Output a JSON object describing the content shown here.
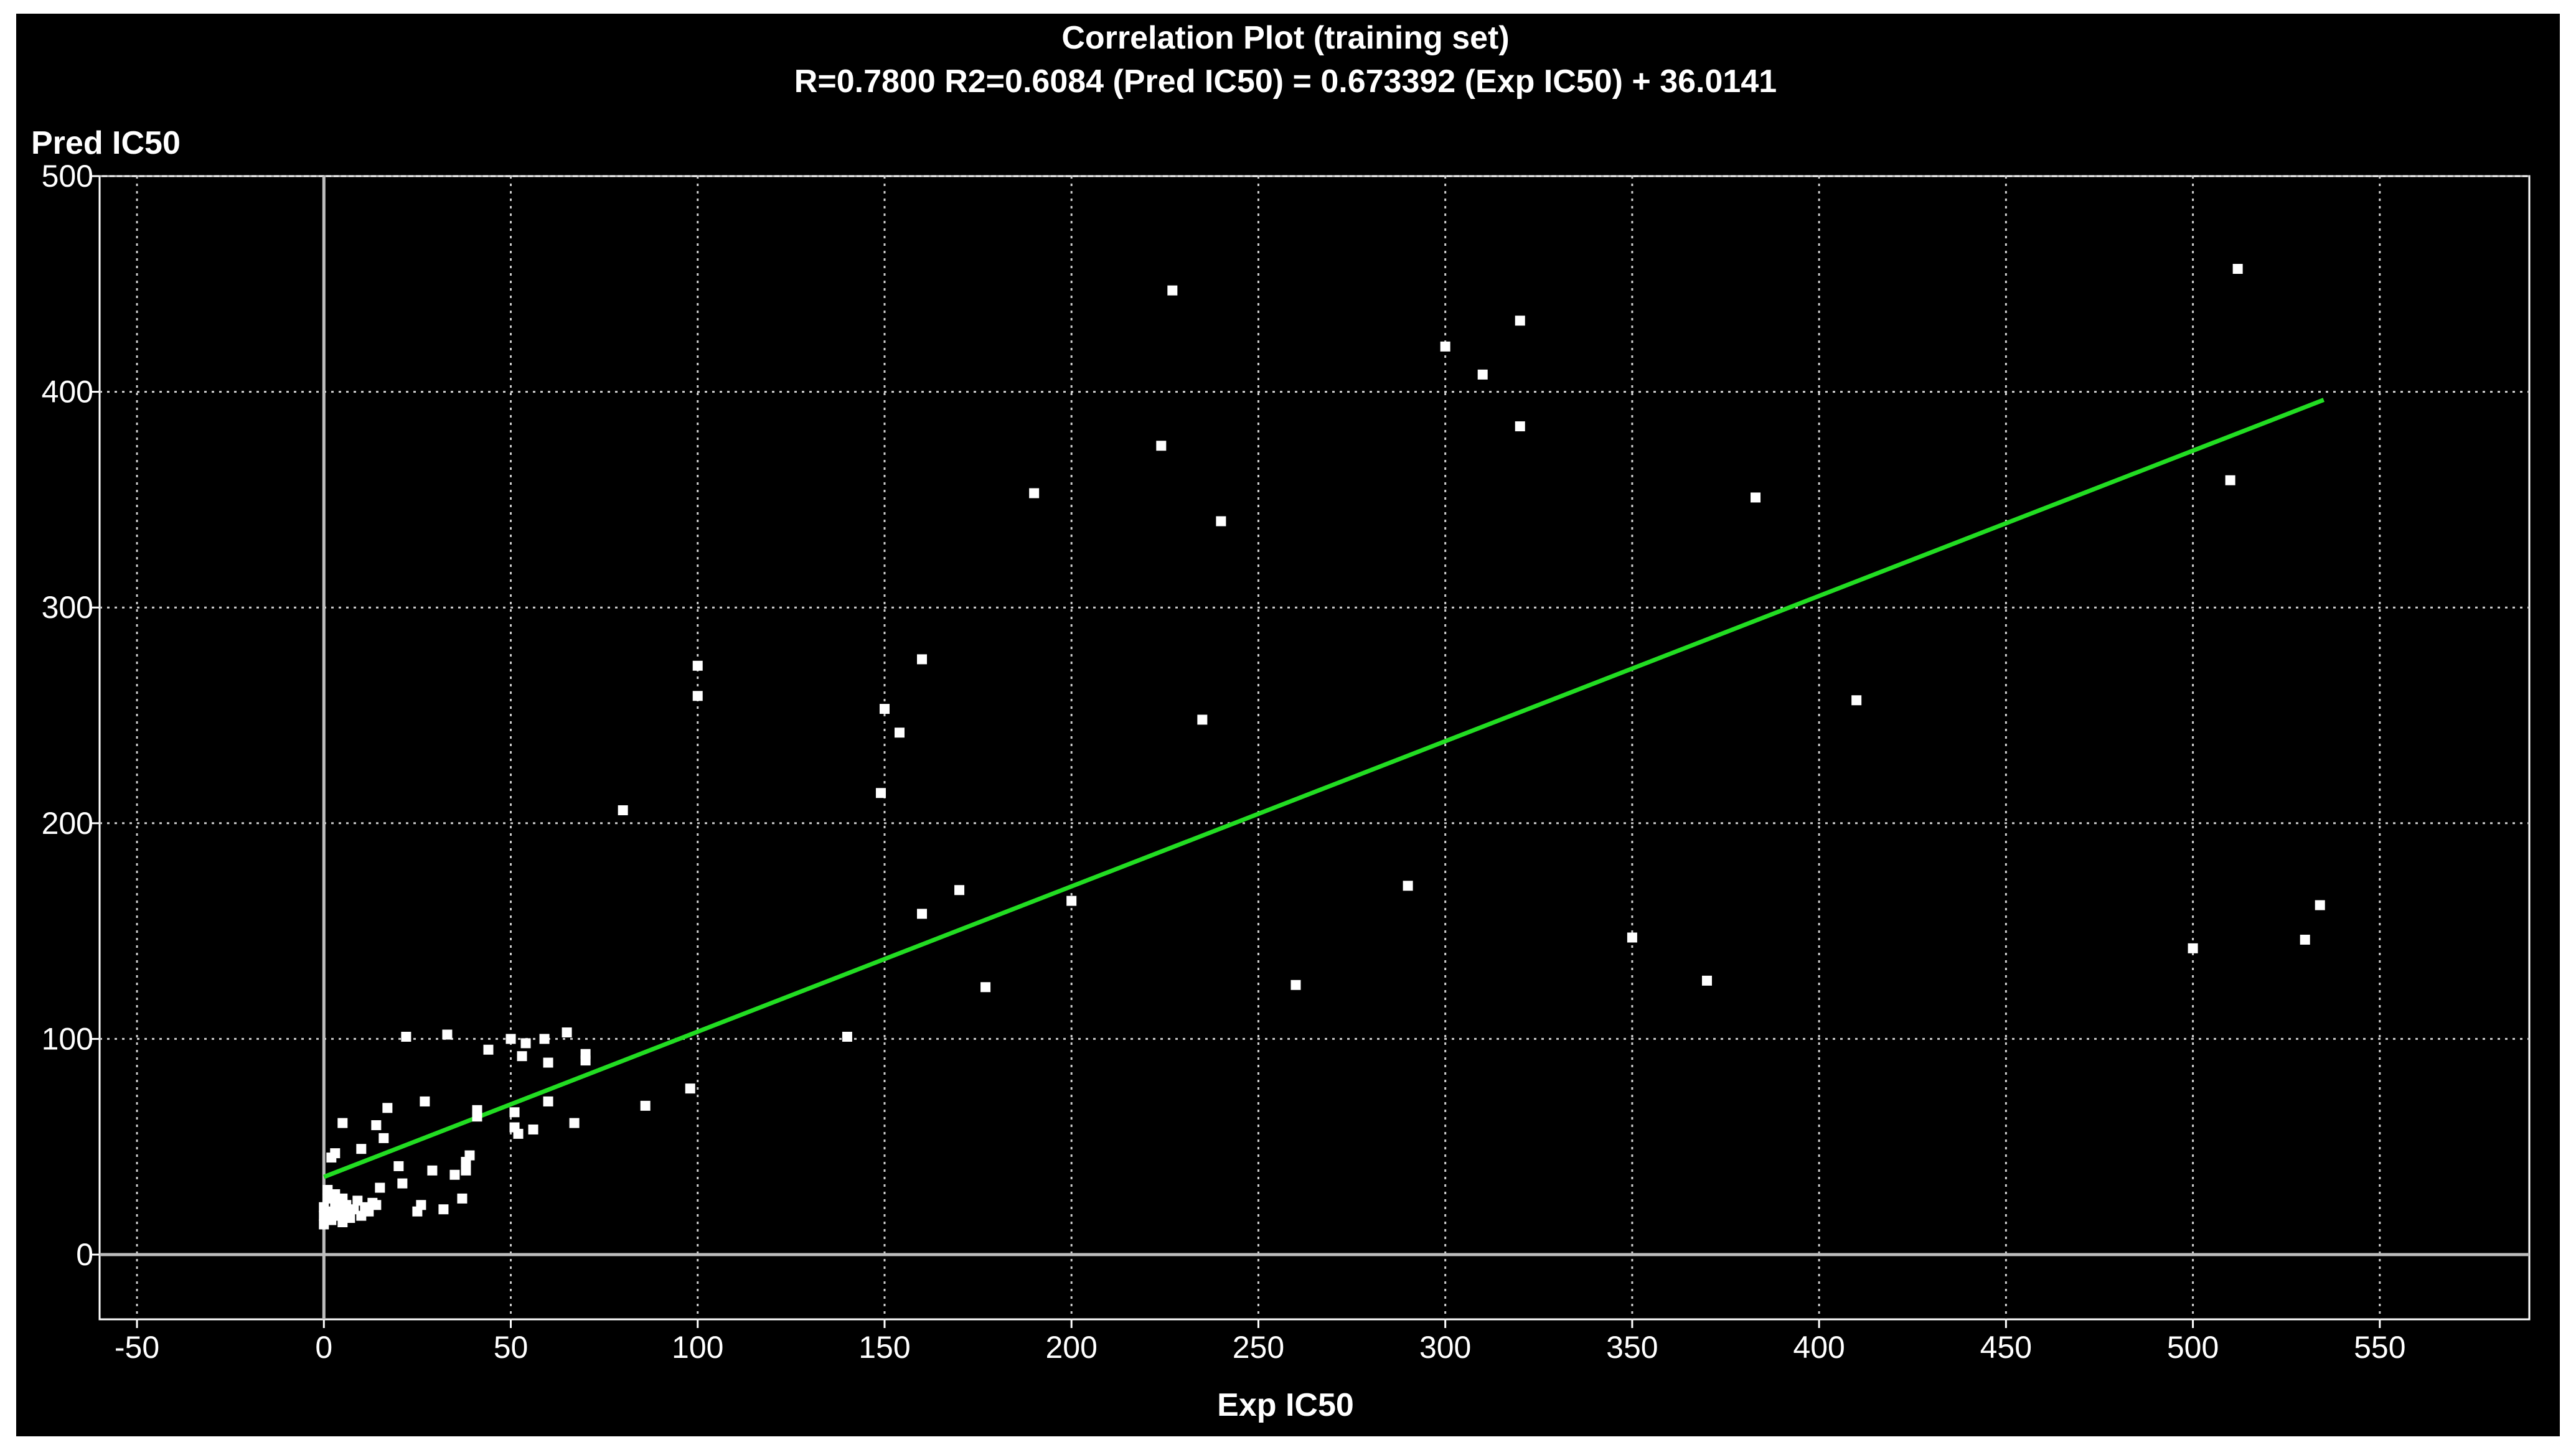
{
  "window": {
    "background": "#000000",
    "border": "#ffffff"
  },
  "chart_data": {
    "type": "scatter",
    "title": "Correlation Plot (training set)",
    "subtitle": "R=0.7800 R2=0.6084     (Pred IC50) = 0.673392 (Exp IC50) + 36.0141",
    "xlabel": "Exp IC50",
    "ylabel": "Pred IC50",
    "xlim": [
      -60,
      590
    ],
    "ylim": [
      -30,
      500
    ],
    "x_ticks": [
      -50,
      0,
      50,
      100,
      150,
      200,
      250,
      300,
      350,
      400,
      450,
      500,
      550
    ],
    "y_ticks": [
      0,
      100,
      200,
      300,
      400,
      500
    ],
    "grid": true,
    "grid_style": "dotted",
    "zero_lines": true,
    "colors": {
      "points": "#ffffff",
      "fit_line": "#22dd22",
      "grid": "#cfcfcf",
      "axis_zero": "#bdbdbd"
    },
    "fit_line": {
      "slope": 0.673392,
      "intercept": 36.0141,
      "x_range": [
        0,
        535
      ]
    },
    "series": [
      {
        "points": [
          [
            0,
            14
          ],
          [
            0,
            18
          ],
          [
            0,
            22
          ],
          [
            1,
            26
          ],
          [
            1,
            30
          ],
          [
            2,
            16
          ],
          [
            2,
            20
          ],
          [
            3,
            24
          ],
          [
            3,
            28
          ],
          [
            4,
            18
          ],
          [
            4,
            22
          ],
          [
            5,
            15
          ],
          [
            5,
            26
          ],
          [
            6,
            19
          ],
          [
            6,
            23
          ],
          [
            7,
            17
          ],
          [
            8,
            21
          ],
          [
            9,
            25
          ],
          [
            10,
            18
          ],
          [
            11,
            22
          ],
          [
            12,
            20
          ],
          [
            13,
            24
          ],
          [
            2,
            45
          ],
          [
            3,
            47
          ],
          [
            5,
            61
          ],
          [
            10,
            49
          ],
          [
            14,
            60
          ],
          [
            15,
            31
          ],
          [
            16,
            54
          ],
          [
            17,
            68
          ],
          [
            14,
            23
          ],
          [
            20,
            41
          ],
          [
            21,
            33
          ],
          [
            22,
            101
          ],
          [
            25,
            20
          ],
          [
            26,
            23
          ],
          [
            27,
            71
          ],
          [
            29,
            39
          ],
          [
            32,
            21
          ],
          [
            33,
            102
          ],
          [
            35,
            37
          ],
          [
            37,
            26
          ],
          [
            38,
            43
          ],
          [
            38,
            39
          ],
          [
            39,
            46
          ],
          [
            41,
            64
          ],
          [
            41,
            67
          ],
          [
            44,
            95
          ],
          [
            50,
            100
          ],
          [
            51,
            66
          ],
          [
            51,
            59
          ],
          [
            52,
            56
          ],
          [
            53,
            92
          ],
          [
            54,
            98
          ],
          [
            56,
            58
          ],
          [
            59,
            100
          ],
          [
            60,
            89
          ],
          [
            60,
            71
          ],
          [
            65,
            103
          ],
          [
            67,
            61
          ],
          [
            70,
            93
          ],
          [
            70,
            90
          ],
          [
            80,
            206
          ],
          [
            86,
            69
          ],
          [
            98,
            77
          ],
          [
            100,
            273
          ],
          [
            100,
            259
          ],
          [
            140,
            101
          ],
          [
            149,
            214
          ],
          [
            150,
            253
          ],
          [
            154,
            242
          ],
          [
            160,
            276
          ],
          [
            160,
            158
          ],
          [
            170,
            169
          ],
          [
            177,
            124
          ],
          [
            190,
            353
          ],
          [
            200,
            164
          ],
          [
            224,
            375
          ],
          [
            227,
            447
          ],
          [
            235,
            248
          ],
          [
            240,
            340
          ],
          [
            260,
            125
          ],
          [
            290,
            171
          ],
          [
            300,
            421
          ],
          [
            310,
            408
          ],
          [
            320,
            433
          ],
          [
            320,
            384
          ],
          [
            350,
            147
          ],
          [
            370,
            127
          ],
          [
            383,
            351
          ],
          [
            410,
            257
          ],
          [
            500,
            142
          ],
          [
            510,
            359
          ],
          [
            512,
            457
          ],
          [
            530,
            146
          ],
          [
            534,
            162
          ]
        ]
      }
    ]
  }
}
